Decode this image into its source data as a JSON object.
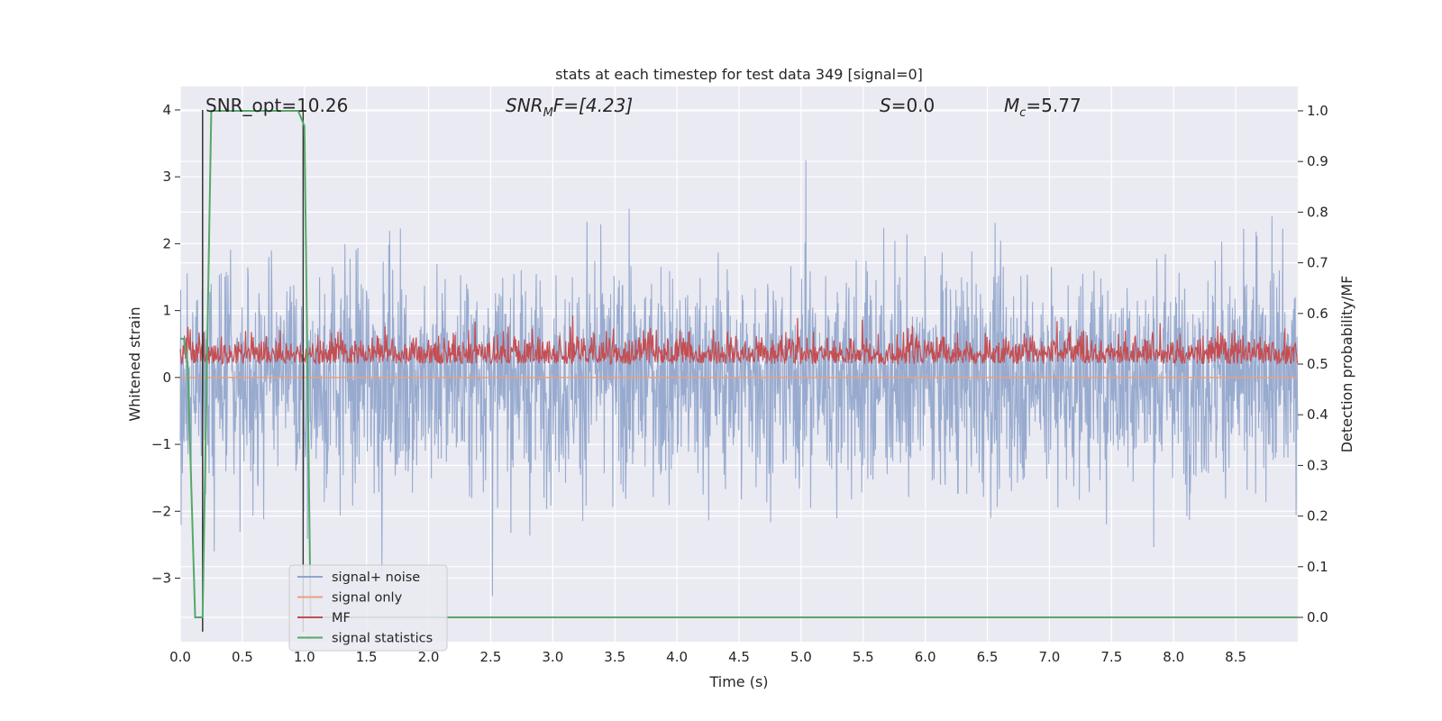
{
  "chart_data": {
    "type": "line",
    "title": "stats at each timestep for test data 349 [signal=0]",
    "xlabel": "Time (s)",
    "ylabel_left": "Whitened strain",
    "ylabel_right": "Detection probability/MF",
    "xlim": [
      0.0,
      9.0
    ],
    "ylim_left": [
      -3.95,
      4.35
    ],
    "ylim_right": [
      -0.048,
      1.048
    ],
    "xticks": [
      "0.0",
      "0.5",
      "1.0",
      "1.5",
      "2.0",
      "2.5",
      "3.0",
      "3.5",
      "4.0",
      "4.5",
      "5.0",
      "5.5",
      "6.0",
      "6.5",
      "7.0",
      "7.5",
      "8.0",
      "8.5"
    ],
    "yticks_left": [
      "4",
      "3",
      "2",
      "1",
      "0",
      "−1",
      "−2",
      "−3"
    ],
    "yticks_right": [
      "1.0",
      "0.9",
      "0.8",
      "0.7",
      "0.6",
      "0.5",
      "0.4",
      "0.3",
      "0.2",
      "0.1",
      "0.0"
    ],
    "grid": true,
    "legend_position": "lower-left",
    "annotations": {
      "snr_opt": "SNR_opt=10.26",
      "snr_mf_label": "SNR",
      "snr_mf_sub": "M",
      "snr_mf_rest": "F=[4.23]",
      "s_label": "S",
      "s_rest": "=0.0",
      "mc_label": "M",
      "mc_sub": "c",
      "mc_rest": "=5.77"
    },
    "series": [
      {
        "name": "signal+ noise",
        "color": "#8fa4cb",
        "axis": "left",
        "kind": "noise",
        "amplitude_std": 0.8,
        "range": [
          -3.6,
          4.0
        ]
      },
      {
        "name": "signal only",
        "color": "#e8a07f",
        "axis": "left",
        "kind": "constant",
        "value": 0.0
      },
      {
        "name": "MF",
        "color": "#c44e52",
        "axis": "right",
        "kind": "noise",
        "base": 0.5,
        "range": [
          0.48,
          0.62
        ]
      },
      {
        "name": "signal statistics",
        "color": "#55a868",
        "axis": "right",
        "x": [
          0.0,
          0.03,
          0.06,
          0.12,
          0.18,
          0.25,
          0.3,
          0.95,
          1.0,
          1.05,
          1.1,
          1.15,
          9.0
        ],
        "values": [
          0.55,
          0.55,
          0.5,
          0.0,
          0.0,
          1.0,
          1.0,
          1.0,
          0.97,
          0.0,
          0.0,
          0.0,
          0.0
        ]
      }
    ],
    "vlines": [
      {
        "x": 0.18,
        "y_left": [
          4.0,
          -3.8
        ],
        "color": "#333333"
      },
      {
        "x": 0.99,
        "y_left": [
          4.0,
          -3.8
        ],
        "color": "#333333"
      }
    ]
  }
}
